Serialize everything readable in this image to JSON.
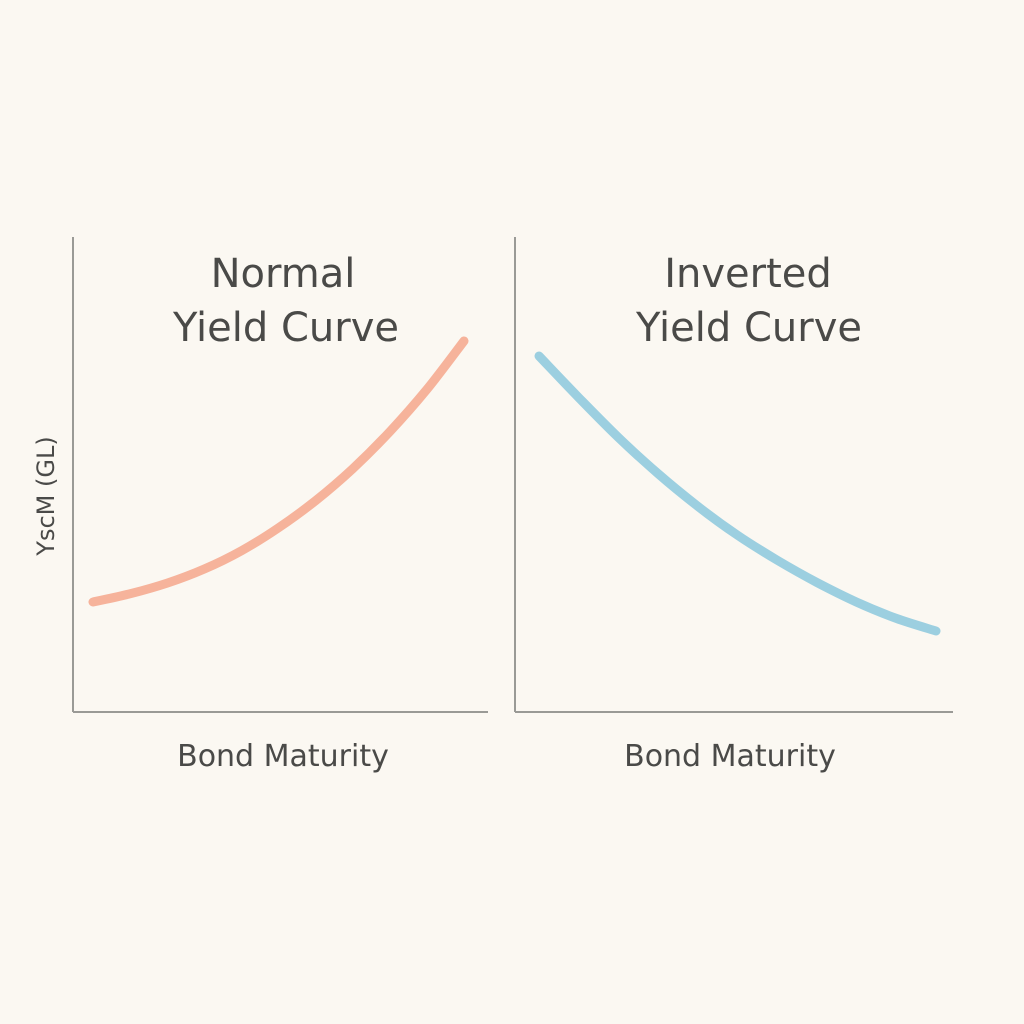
{
  "chart_data": [
    {
      "type": "line",
      "title_lines": [
        "Normal",
        "Yield Curve"
      ],
      "xlabel": "Bond Maturity",
      "ylabel": "YscM (GL)",
      "color": "#f6b39b",
      "series": [
        {
          "x": [
            0,
            10,
            20,
            30,
            40,
            50,
            60,
            70,
            80,
            90,
            100
          ],
          "y": [
            24,
            26.4,
            29.5,
            33.6,
            38.9,
            45.6,
            53.5,
            62.8,
            73.6,
            85.9,
            100
          ]
        }
      ]
    },
    {
      "type": "line",
      "title_lines": [
        "Inverted",
        "Yield Curve"
      ],
      "xlabel": "Bond Maturity",
      "color": "#9ccfe0",
      "series": [
        {
          "x": [
            0,
            10,
            20,
            30,
            40,
            50,
            60,
            70,
            80,
            90,
            100
          ],
          "y": [
            100,
            87.5,
            75.5,
            64.6,
            54.8,
            46.1,
            38.6,
            31.9,
            26.0,
            21.1,
            17.3
          ]
        }
      ]
    }
  ]
}
